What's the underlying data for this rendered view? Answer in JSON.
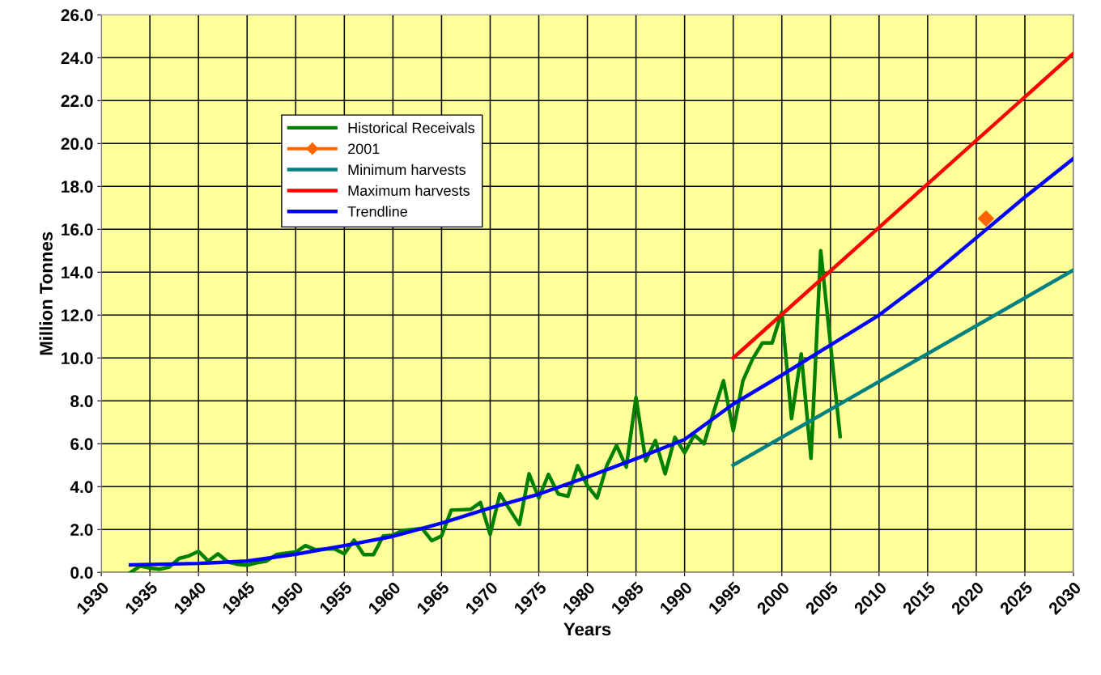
{
  "chart_data": {
    "type": "line",
    "xlabel": "Years",
    "ylabel": "Million Tonnes",
    "xlim": [
      1930,
      2030
    ],
    "xticks": [
      1930,
      1935,
      1940,
      1945,
      1950,
      1955,
      1960,
      1965,
      1970,
      1975,
      1980,
      1985,
      1990,
      1995,
      2000,
      2005,
      2010,
      2015,
      2020,
      2025,
      2030
    ],
    "ylim": [
      0,
      26
    ],
    "yticks": [
      {
        "value": 0,
        "label": "0.0"
      },
      {
        "value": 2,
        "label": "2.0"
      },
      {
        "value": 4,
        "label": "4.0"
      },
      {
        "value": 6,
        "label": "6.0"
      },
      {
        "value": 8,
        "label": "8.0"
      },
      {
        "value": 10,
        "label": "10.0"
      },
      {
        "value": 12,
        "label": "12.0"
      },
      {
        "value": 14,
        "label": "14.0"
      },
      {
        "value": 16,
        "label": "16.0"
      },
      {
        "value": 18,
        "label": "18.0"
      },
      {
        "value": 20,
        "label": "20.0"
      },
      {
        "value": 22,
        "label": "22.0"
      },
      {
        "value": 24,
        "label": "24.0"
      },
      {
        "value": 26,
        "label": "26.0"
      }
    ],
    "grid": true,
    "legend": "left",
    "marker": "none",
    "line_style": "solid",
    "series": [
      {
        "name": "Historical Receivals",
        "color": "#008000",
        "x": [
          1933,
          1934,
          1935,
          1936,
          1937,
          1938,
          1939,
          1940,
          1941,
          1942,
          1943,
          1944,
          1945,
          1946,
          1947,
          1948,
          1949,
          1950,
          1951,
          1952,
          1953,
          1954,
          1955,
          1956,
          1957,
          1958,
          1959,
          1960,
          1961,
          1962,
          1963,
          1964,
          1965,
          1966,
          1967,
          1968,
          1969,
          1970,
          1971,
          1972,
          1973,
          1974,
          1975,
          1976,
          1977,
          1978,
          1979,
          1980,
          1981,
          1982,
          1983,
          1984,
          1985,
          1986,
          1987,
          1988,
          1989,
          1990,
          1991,
          1992,
          1993,
          1994,
          1995,
          1996,
          1997,
          1998,
          1999,
          2000,
          2001,
          2002,
          2003,
          2004,
          2006
        ],
        "values": [
          0.0,
          0.3,
          0.2,
          0.15,
          0.25,
          0.65,
          0.77,
          0.98,
          0.53,
          0.87,
          0.49,
          0.38,
          0.34,
          0.45,
          0.53,
          0.83,
          0.9,
          0.95,
          1.25,
          1.06,
          1.09,
          1.09,
          0.87,
          1.51,
          0.83,
          0.83,
          1.7,
          1.74,
          1.95,
          2.0,
          2.05,
          1.48,
          1.7,
          2.91,
          2.92,
          2.94,
          3.26,
          1.77,
          3.66,
          2.94,
          2.23,
          4.6,
          3.47,
          4.57,
          3.66,
          3.55,
          4.98,
          4.04,
          3.47,
          4.98,
          5.92,
          4.91,
          8.16,
          5.2,
          6.15,
          4.6,
          6.3,
          5.58,
          6.41,
          6.0,
          7.5,
          8.94,
          6.6,
          8.94,
          9.96,
          10.7,
          10.7,
          12.15,
          7.17,
          10.19,
          5.32,
          15.0,
          6.34
        ]
      },
      {
        "name": "2001",
        "color": "#ff6600",
        "type": "scatter",
        "marker": "diamond",
        "x": [
          2021
        ],
        "values": [
          16.5
        ]
      },
      {
        "name": "Minimum harvests",
        "color": "#008080",
        "x": [
          1995,
          2030
        ],
        "values": [
          5.0,
          14.1
        ]
      },
      {
        "name": "Maximum harvests",
        "color": "#ff0000",
        "x": [
          1995,
          2030
        ],
        "values": [
          10.0,
          24.2
        ]
      },
      {
        "name": "Trendline",
        "color": "#0000ff",
        "x": [
          1933,
          1940,
          1945,
          1950,
          1955,
          1960,
          1965,
          1970,
          1975,
          1980,
          1985,
          1990,
          1995,
          2000,
          2005,
          2010,
          2015,
          2020,
          2025,
          2030
        ],
        "values": [
          0.35,
          0.42,
          0.53,
          0.85,
          1.25,
          1.68,
          2.3,
          3.0,
          3.65,
          4.45,
          5.3,
          6.2,
          7.85,
          9.2,
          10.6,
          12.0,
          13.7,
          15.6,
          17.5,
          19.3
        ]
      }
    ]
  }
}
